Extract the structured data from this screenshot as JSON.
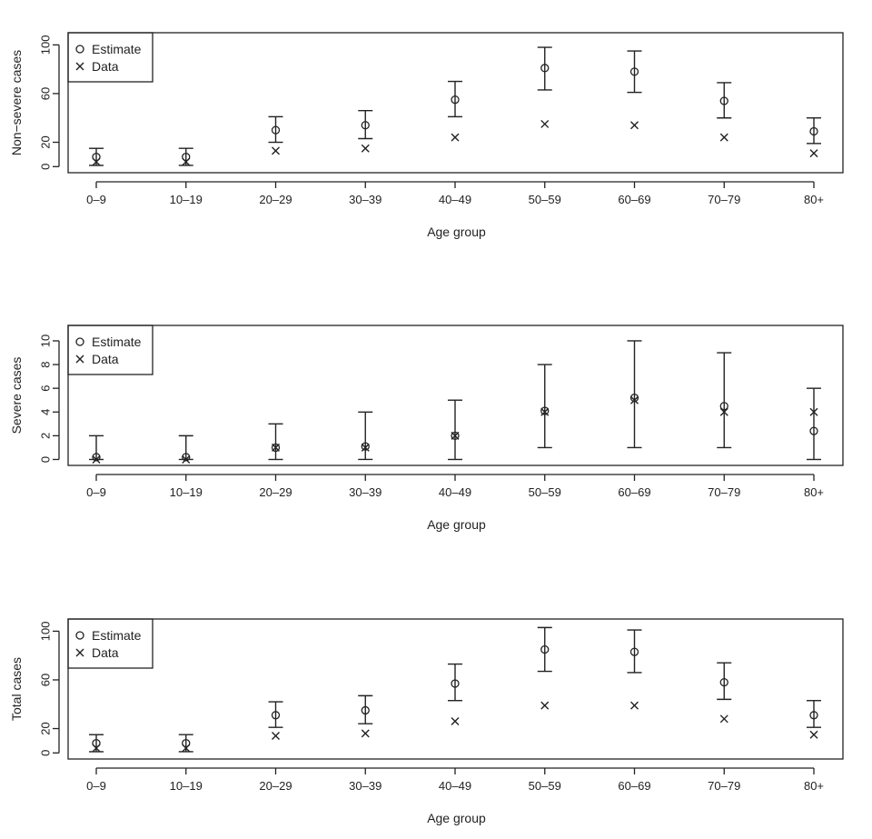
{
  "chart_data": [
    {
      "type": "scatter",
      "ylabel": "Non−severe cases",
      "xlabel": "Age group",
      "categories": [
        "0–9",
        "10–19",
        "20–29",
        "30–39",
        "40–49",
        "50–59",
        "60–69",
        "70–79",
        "80+"
      ],
      "yticks": [
        0,
        20,
        60,
        100
      ],
      "ylim": [
        -5,
        110
      ],
      "legend": {
        "placement": "top-left",
        "entries": [
          "Estimate",
          "Data"
        ]
      },
      "series": [
        {
          "name": "Estimate",
          "marker": "circle",
          "values": [
            8,
            8,
            30,
            34,
            55,
            81,
            78,
            54,
            29
          ],
          "lower": [
            1,
            1,
            20,
            23,
            41,
            63,
            61,
            40,
            19
          ],
          "upper": [
            15,
            15,
            41,
            46,
            70,
            98,
            95,
            69,
            40
          ]
        },
        {
          "name": "Data",
          "marker": "x",
          "values": [
            4,
            4,
            13,
            15,
            24,
            35,
            34,
            24,
            11
          ]
        }
      ]
    },
    {
      "type": "scatter",
      "ylabel": "Severe cases",
      "xlabel": "Age group",
      "categories": [
        "0–9",
        "10–19",
        "20–29",
        "30–39",
        "40–49",
        "50–59",
        "60–69",
        "70–79",
        "80+"
      ],
      "yticks": [
        0,
        2,
        4,
        6,
        8,
        10
      ],
      "ylim": [
        -0.5,
        11.3
      ],
      "legend": {
        "placement": "top-left",
        "entries": [
          "Estimate",
          "Data"
        ]
      },
      "series": [
        {
          "name": "Estimate",
          "marker": "circle",
          "values": [
            0.2,
            0.2,
            1.0,
            1.1,
            2.0,
            4.1,
            5.2,
            4.5,
            2.4
          ],
          "lower": [
            0,
            0,
            0,
            0,
            0,
            1,
            1,
            1,
            0
          ],
          "upper": [
            2,
            2,
            3,
            4,
            5,
            8,
            10,
            9,
            6
          ]
        },
        {
          "name": "Data",
          "marker": "x",
          "values": [
            0,
            0,
            1,
            1,
            2,
            4,
            5,
            4,
            4
          ]
        }
      ]
    },
    {
      "type": "scatter",
      "ylabel": "Total cases",
      "xlabel": "Age group",
      "categories": [
        "0–9",
        "10–19",
        "20–29",
        "30–39",
        "40–49",
        "50–59",
        "60–69",
        "70–79",
        "80+"
      ],
      "yticks": [
        0,
        20,
        60,
        100
      ],
      "ylim": [
        -5,
        110
      ],
      "legend": {
        "placement": "top-left",
        "entries": [
          "Estimate",
          "Data"
        ]
      },
      "series": [
        {
          "name": "Estimate",
          "marker": "circle",
          "values": [
            8,
            8,
            31,
            35,
            57,
            85,
            83,
            58,
            31
          ],
          "lower": [
            1,
            1,
            21,
            24,
            43,
            67,
            66,
            44,
            21
          ],
          "upper": [
            15,
            15,
            42,
            47,
            73,
            103,
            101,
            74,
            43
          ]
        },
        {
          "name": "Data",
          "marker": "x",
          "values": [
            4,
            4,
            14,
            16,
            26,
            39,
            39,
            28,
            15
          ]
        }
      ]
    }
  ]
}
